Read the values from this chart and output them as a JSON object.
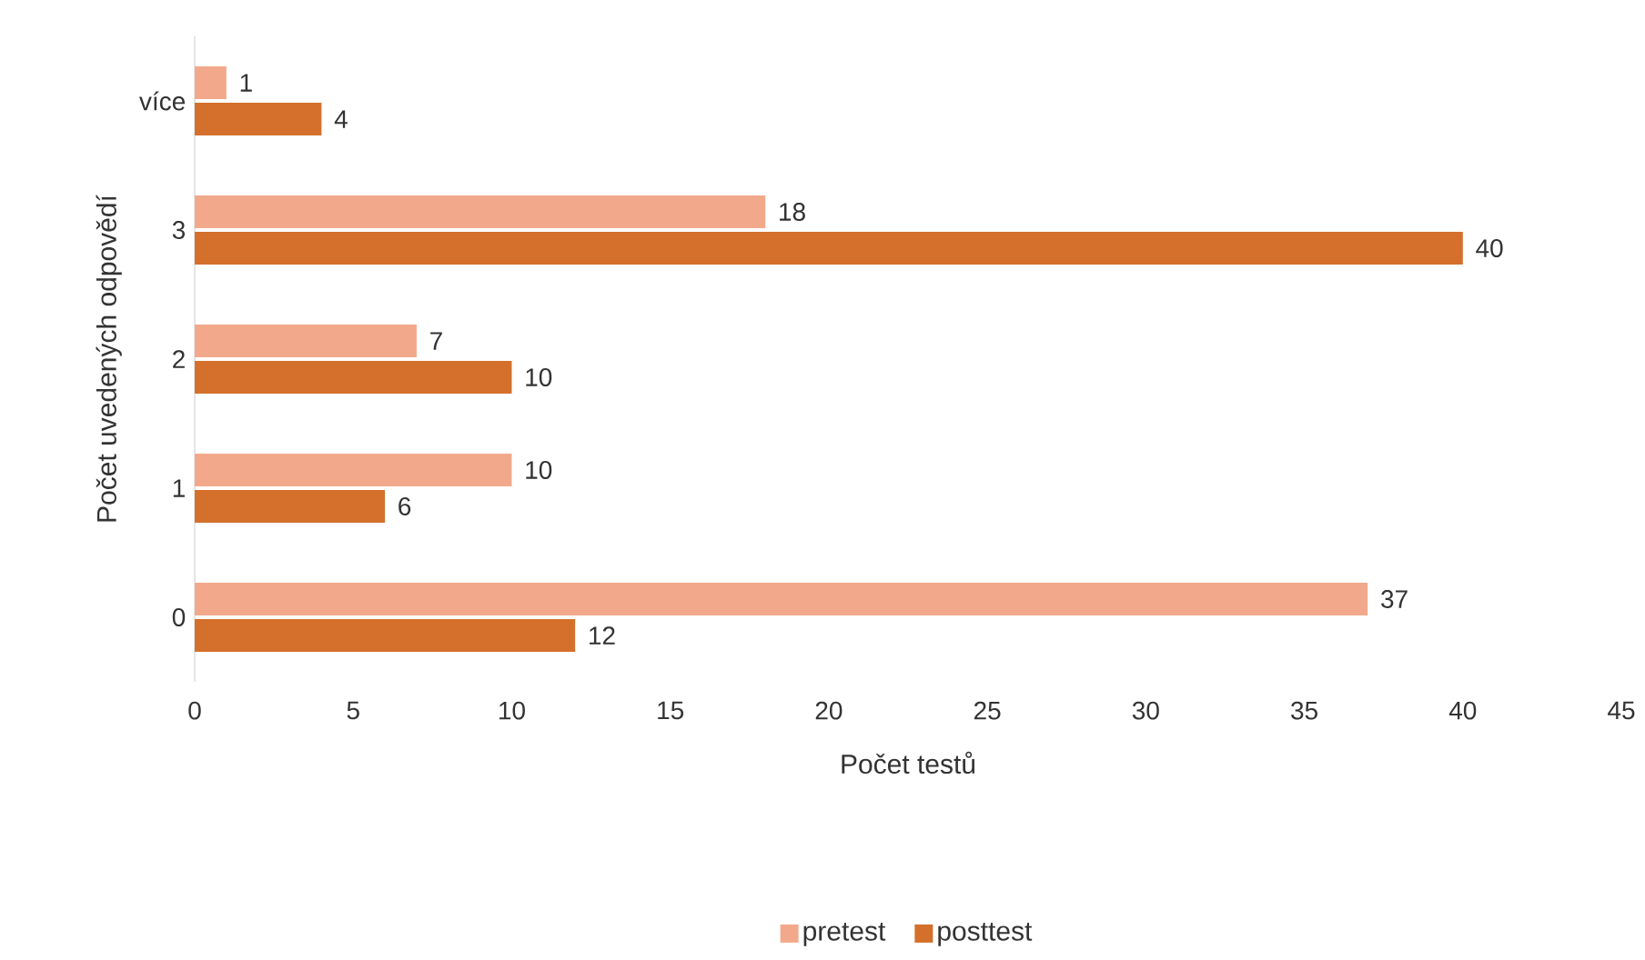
{
  "chart_data": {
    "type": "bar",
    "orientation": "horizontal",
    "xlabel": "Počet testů",
    "ylabel": "Počet uvedených odpovědí",
    "categories": [
      "více",
      "3",
      "2",
      "1",
      "0"
    ],
    "series": [
      {
        "name": "pretest",
        "color": "#f2a98b",
        "values": [
          1,
          18,
          7,
          10,
          37
        ]
      },
      {
        "name": "posttest",
        "color": "#d4702c",
        "values": [
          4,
          40,
          10,
          6,
          12
        ]
      }
    ],
    "xlim": [
      0,
      45
    ],
    "xticks": [
      0,
      5,
      10,
      15,
      20,
      25,
      30,
      35,
      40,
      45
    ],
    "data_labels": true,
    "legend": "bottom",
    "grid": false
  }
}
